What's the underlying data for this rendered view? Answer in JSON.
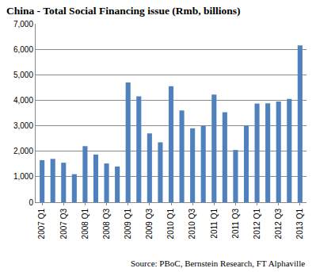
{
  "chart_data": {
    "type": "bar",
    "title": "China - Total Social Financing issue (Rmb, billions)",
    "source": "Source: PBoC, Bernstein Research, FT Alphaville",
    "categories": [
      "2007 Q1",
      null,
      "2007 Q3",
      null,
      "2008 Q1",
      null,
      "2008 Q3",
      null,
      "2009 Q1",
      null,
      "2009 Q3",
      null,
      "2010 Q1",
      null,
      "2010 Q3",
      null,
      "2011 Q1",
      null,
      "2011 Q3",
      null,
      "2012 Q1",
      null,
      "2012 Q3",
      null,
      "2013 Q1"
    ],
    "values": [
      1650,
      1700,
      1550,
      1100,
      2200,
      1870,
      1520,
      1400,
      4700,
      4150,
      2700,
      2350,
      4550,
      3600,
      2900,
      3000,
      4220,
      3530,
      2050,
      3000,
      3870,
      3880,
      3950,
      4050,
      6150
    ],
    "color": "#4f81bd",
    "ylim": [
      0,
      7000
    ],
    "yticks": [
      0,
      {
        "value": 1000,
        "label": "1,000"
      },
      {
        "value": 2000,
        "label": "2,000"
      },
      {
        "value": 3000,
        "label": "3,000"
      },
      {
        "value": 4000,
        "label": "4,000"
      },
      {
        "value": 5000,
        "label": "5,000"
      },
      {
        "value": 6000,
        "label": "6,000"
      },
      {
        "value": 7000,
        "label": "7,000"
      }
    ],
    "grid": true
  }
}
